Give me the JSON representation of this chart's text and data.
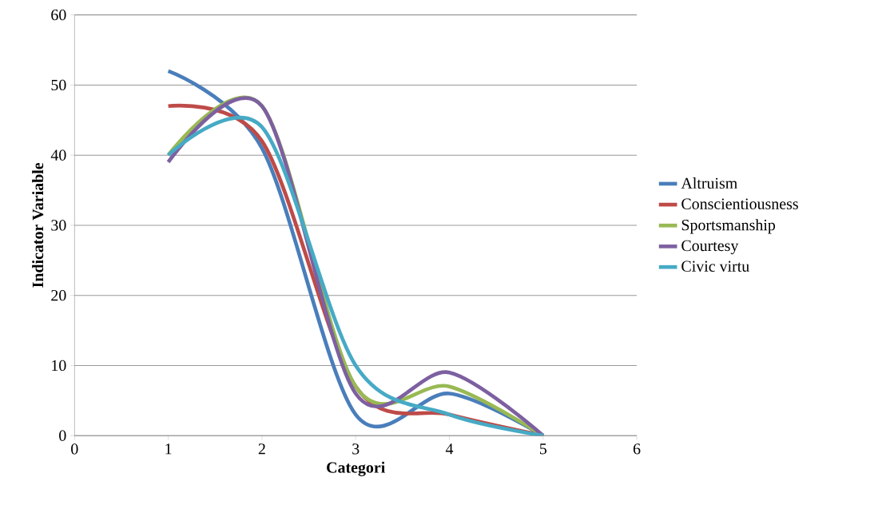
{
  "chart_data": {
    "type": "line",
    "xlabel": "Categori",
    "ylabel": "Indicator Variable",
    "x": [
      1,
      2,
      3,
      4,
      5
    ],
    "series": [
      {
        "name": "Altruism",
        "color": "#4a7ebb",
        "values": [
          52,
          41,
          3,
          6,
          0
        ]
      },
      {
        "name": "Conscientiousness",
        "color": "#be4b48",
        "values": [
          47,
          42,
          7,
          3,
          0
        ]
      },
      {
        "name": "Sportsmanship",
        "color": "#98b954",
        "values": [
          40,
          47,
          7,
          7,
          0
        ]
      },
      {
        "name": "Courtesy",
        "color": "#7d60a0",
        "values": [
          39,
          47,
          6,
          9,
          0
        ]
      },
      {
        "name": "Civic virtu",
        "color": "#46aac5",
        "values": [
          40,
          44,
          10,
          3,
          0
        ]
      }
    ],
    "xlim": [
      0,
      6
    ],
    "ylim": [
      0,
      60
    ],
    "xticks": [
      0,
      1,
      2,
      3,
      4,
      5,
      6
    ],
    "yticks": [
      0,
      10,
      20,
      30,
      40,
      50,
      60
    ],
    "grid": "y",
    "legend": "right",
    "marker": "none",
    "line_style": "solid"
  }
}
